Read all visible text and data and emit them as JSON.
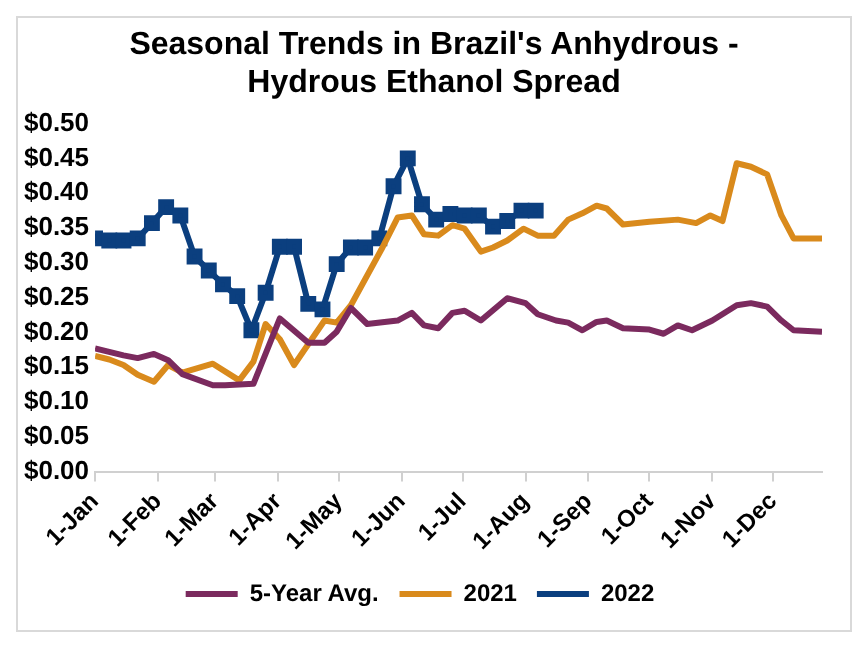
{
  "chart_data": {
    "type": "line",
    "title": "Seasonal Trends in Brazil's Anhydrous - Hydrous Ethanol Spread",
    "xlim": [
      "--01-01",
      "--12-25"
    ],
    "xticks": [
      {
        "value": "--01-01",
        "label": "1-Jan"
      },
      {
        "value": "--02-01",
        "label": "1-Feb"
      },
      {
        "value": "--03-01",
        "label": "1-Mar"
      },
      {
        "value": "--04-01",
        "label": "1-Apr"
      },
      {
        "value": "--05-01",
        "label": "1-May"
      },
      {
        "value": "--06-01",
        "label": "1-Jun"
      },
      {
        "value": "--07-01",
        "label": "1-Jul"
      },
      {
        "value": "--08-01",
        "label": "1-Aug"
      },
      {
        "value": "--09-01",
        "label": "1-Sep"
      },
      {
        "value": "--10-01",
        "label": "1-Oct"
      },
      {
        "value": "--11-01",
        "label": "1-Nov"
      },
      {
        "value": "--12-01",
        "label": "1-Dec"
      }
    ],
    "ylim": [
      0,
      0.5
    ],
    "yticks": [
      {
        "value": 0,
        "label": "$0.00"
      },
      {
        "value": 0.05,
        "label": "$0.05"
      },
      {
        "value": 0.1,
        "label": "$0.10"
      },
      {
        "value": 0.15,
        "label": "$0.15"
      },
      {
        "value": 0.2,
        "label": "$0.20"
      },
      {
        "value": 0.25,
        "label": "$0.25"
      },
      {
        "value": 0.3,
        "label": "$0.30"
      },
      {
        "value": 0.35,
        "label": "$0.35"
      },
      {
        "value": 0.4,
        "label": "$0.40"
      },
      {
        "value": 0.45,
        "label": "$0.45"
      },
      {
        "value": 0.5,
        "label": "$0.50"
      }
    ],
    "grid": false,
    "legend": "bottom",
    "line_style": "solid",
    "series": [
      {
        "name": "5-Year Avg.",
        "color": "#7b2a5e",
        "marker": "none",
        "x": [
          "--01-01",
          "--01-15",
          "--01-22",
          "--01-30",
          "--02-06",
          "--02-13",
          "--02-28",
          "--03-06",
          "--03-20",
          "--04-02",
          "--04-16",
          "--04-24",
          "--04-30",
          "--05-07",
          "--05-15",
          "--05-30",
          "--06-06",
          "--06-12",
          "--06-19",
          "--06-26",
          "--07-02",
          "--07-10",
          "--07-23",
          "--08-01",
          "--08-07",
          "--08-16",
          "--08-22",
          "--08-29",
          "--09-05",
          "--09-10",
          "--09-18",
          "--10-01",
          "--10-08",
          "--10-15",
          "--10-22",
          "--11-01",
          "--11-13",
          "--11-20",
          "--11-28",
          "--12-05",
          "--12-11",
          "--12-25"
        ],
        "values": [
          0.177,
          0.167,
          0.163,
          0.169,
          0.16,
          0.14,
          0.124,
          0.124,
          0.126,
          0.22,
          0.185,
          0.185,
          0.201,
          0.235,
          0.212,
          0.217,
          0.228,
          0.21,
          0.206,
          0.228,
          0.231,
          0.217,
          0.249,
          0.242,
          0.226,
          0.217,
          0.214,
          0.203,
          0.215,
          0.217,
          0.206,
          0.204,
          0.198,
          0.21,
          0.203,
          0.217,
          0.239,
          0.242,
          0.237,
          0.217,
          0.203,
          0.201
        ]
      },
      {
        "name": "2021",
        "color": "#d98a1c",
        "marker": "none",
        "x": [
          "--01-01",
          "--01-08",
          "--01-15",
          "--01-22",
          "--01-30",
          "--02-06",
          "--02-13",
          "--02-28",
          "--03-13",
          "--03-20",
          "--03-26",
          "--04-02",
          "--04-09",
          "--04-24",
          "--04-30",
          "--05-07",
          "--05-22",
          "--05-30",
          "--06-06",
          "--06-12",
          "--06-19",
          "--06-26",
          "--07-02",
          "--07-10",
          "--07-16",
          "--07-23",
          "--07-31",
          "--08-07",
          "--08-15",
          "--08-22",
          "--08-29",
          "--09-05",
          "--09-10",
          "--09-18",
          "--10-01",
          "--10-15",
          "--10-24",
          "--10-31",
          "--11-06",
          "--11-13",
          "--11-20",
          "--11-28",
          "--12-05",
          "--12-11",
          "--12-25"
        ],
        "values": [
          0.166,
          0.161,
          0.153,
          0.139,
          0.129,
          0.153,
          0.142,
          0.155,
          0.131,
          0.158,
          0.212,
          0.19,
          0.153,
          0.217,
          0.214,
          0.239,
          0.319,
          0.365,
          0.368,
          0.341,
          0.339,
          0.354,
          0.349,
          0.316,
          0.322,
          0.332,
          0.349,
          0.339,
          0.339,
          0.362,
          0.371,
          0.382,
          0.378,
          0.355,
          0.359,
          0.362,
          0.357,
          0.368,
          0.36,
          0.443,
          0.438,
          0.427,
          0.368,
          0.335,
          0.335
        ]
      },
      {
        "name": "2022",
        "color": "#0b3f7f",
        "marker": "square",
        "x": [
          "--01-01",
          "--01-08",
          "--01-15",
          "--01-22",
          "--01-29",
          "--02-05",
          "--02-12",
          "--02-19",
          "--02-26",
          "--03-05",
          "--03-12",
          "--03-19",
          "--03-26",
          "--04-02",
          "--04-09",
          "--04-16",
          "--04-23",
          "--04-30",
          "--05-07",
          "--05-14",
          "--05-21",
          "--05-28",
          "--06-04",
          "--06-11",
          "--06-18",
          "--06-25",
          "--07-02",
          "--07-09",
          "--07-16",
          "--07-23",
          "--07-30",
          "--08-06"
        ],
        "values": [
          0.335,
          0.332,
          0.332,
          0.335,
          0.357,
          0.38,
          0.368,
          0.309,
          0.289,
          0.269,
          0.252,
          0.203,
          0.257,
          0.323,
          0.323,
          0.241,
          0.233,
          0.298,
          0.322,
          0.322,
          0.335,
          0.41,
          0.45,
          0.384,
          0.362,
          0.37,
          0.368,
          0.368,
          0.352,
          0.36,
          0.375,
          0.375
        ]
      }
    ]
  }
}
